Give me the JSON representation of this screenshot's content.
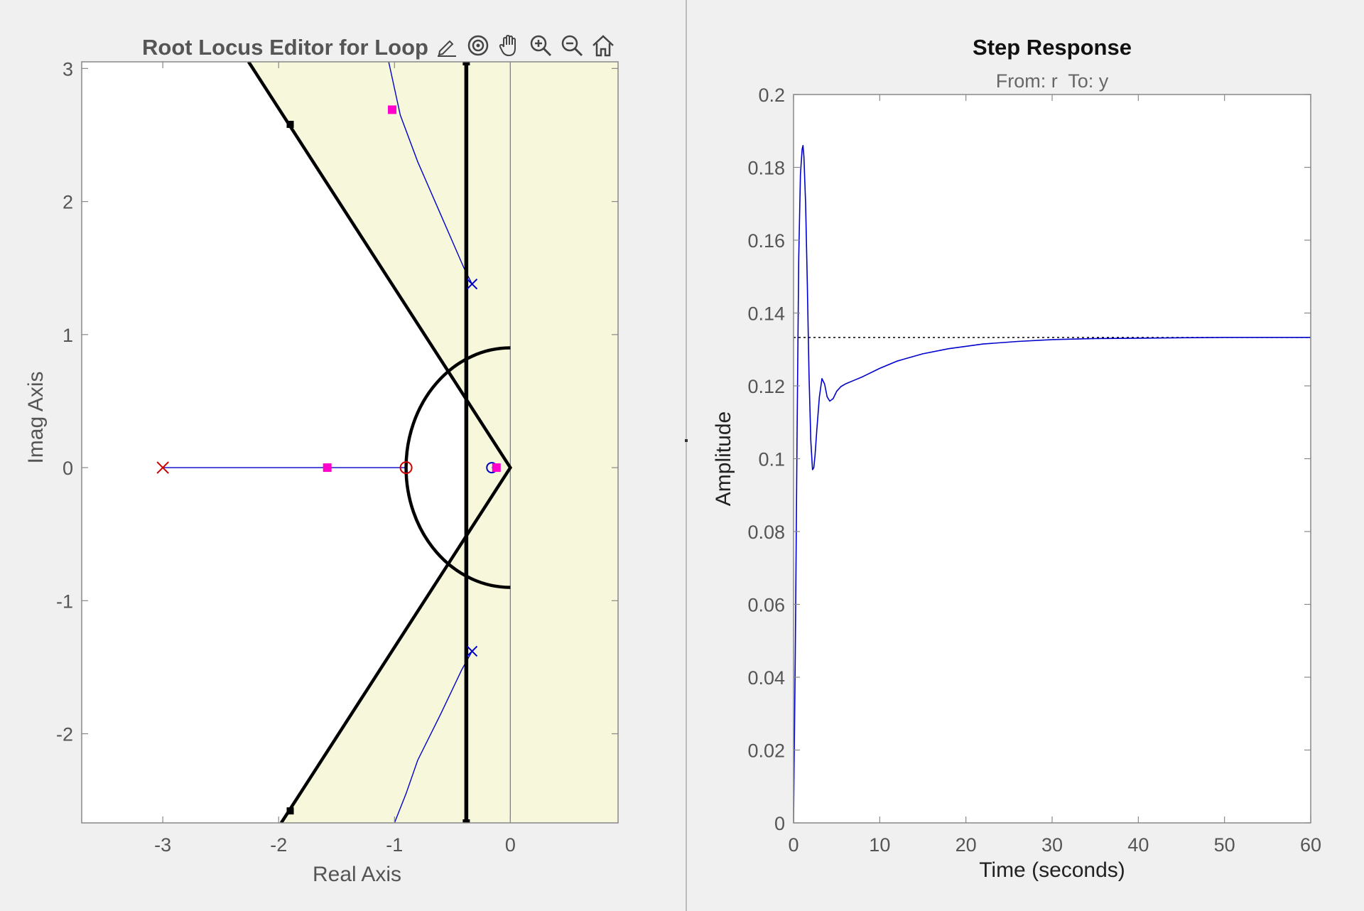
{
  "left_panel": {
    "title": "Root Locus Editor for Loop",
    "toolbar": [
      {
        "icon": "edit-pen-icon"
      },
      {
        "icon": "target-icon"
      },
      {
        "icon": "pan-hand-icon"
      },
      {
        "icon": "zoom-in-icon"
      },
      {
        "icon": "zoom-out-icon"
      },
      {
        "icon": "home-icon"
      }
    ]
  },
  "right_panel": {
    "title": "Step Response",
    "subtitle": "From: r  To: y"
  },
  "colors": {
    "region_fill": "#f7f7dc",
    "locus": "#0000cc",
    "pole_open": "#cc0000",
    "closed_loop_marker": "#ff00cc",
    "constraint_line": "#000000"
  },
  "chart_data": [
    {
      "type": "scatter",
      "title": "Root Locus Editor for Loop",
      "xlabel": "Real Axis",
      "ylabel": "Imag Axis",
      "xlim": [
        -3.7,
        0.93
      ],
      "ylim": [
        -2.67,
        3.05
      ],
      "xticks": [
        -3,
        -2,
        -1,
        0
      ],
      "yticks": [
        -2,
        -1,
        0,
        1,
        2,
        3
      ],
      "open_loop_poles_red": [
        [
          -3,
          0
        ]
      ],
      "open_loop_zeros_red": [
        [
          -0.9,
          0
        ]
      ],
      "compensator_poles_blue": [
        [
          -0.33,
          1.38
        ],
        [
          -0.33,
          -1.38
        ]
      ],
      "compensator_zeros_blue": [
        [
          -0.16,
          0
        ]
      ],
      "closed_loop_poles": [
        [
          -1.58,
          0
        ],
        [
          -1.02,
          2.69
        ],
        [
          -0.12,
          0
        ]
      ],
      "locus_branches": [
        {
          "name": "real-axis",
          "points": [
            [
              -3,
              0
            ],
            [
              -0.9,
              0
            ]
          ]
        },
        {
          "name": "upper",
          "points": [
            [
              -0.33,
              1.38
            ],
            [
              -0.4,
              1.5
            ],
            [
              -0.6,
              1.9
            ],
            [
              -0.8,
              2.3
            ],
            [
              -0.95,
              2.65
            ],
            [
              -1.05,
              3.05
            ]
          ]
        },
        {
          "name": "lower",
          "points": [
            [
              -0.33,
              -1.38
            ],
            [
              -0.42,
              -1.52
            ],
            [
              -0.6,
              -1.85
            ],
            [
              -0.8,
              -2.2
            ],
            [
              -0.9,
              -2.45
            ],
            [
              -1.0,
              -2.67
            ]
          ]
        },
        {
          "name": "real-axis-small",
          "points": [
            [
              -0.16,
              0
            ],
            [
              -0.12,
              0
            ]
          ]
        }
      ],
      "constraints": {
        "settling_boundary_x": -0.38,
        "damping_ray_slope": 1.35,
        "natural_frequency_radius": 0.9,
        "imag_axis_x": 0
      }
    },
    {
      "type": "line",
      "title": "Step Response",
      "subtitle": "From: r  To: y",
      "xlabel": "Time (seconds)",
      "ylabel": "Amplitude",
      "xlim": [
        0,
        60
      ],
      "ylim": [
        0,
        0.2
      ],
      "xticks": [
        0,
        10,
        20,
        30,
        40,
        50,
        60
      ],
      "yticks": [
        0,
        0.02,
        0.04,
        0.06,
        0.08,
        0.1,
        0.12,
        0.14,
        0.16,
        0.18,
        0.2
      ],
      "ytick_labels": [
        "0",
        "0.02",
        "0.04",
        "0.06",
        "0.08",
        "0.1",
        "0.12",
        "0.14",
        "0.16",
        "0.18",
        "0.2"
      ],
      "final_value": 0.1333,
      "series": [
        {
          "x": [
            0,
            0.2,
            0.4,
            0.6,
            0.8,
            1.0,
            1.1,
            1.2,
            1.4,
            1.6,
            1.8,
            2.0,
            2.2,
            2.35,
            2.5,
            2.7,
            3.0,
            3.3,
            3.6,
            3.9,
            4.2,
            4.6,
            5.0,
            5.5,
            6.0,
            7.0,
            8.0,
            10,
            12,
            15,
            18,
            22,
            26,
            30,
            35,
            40,
            45,
            50,
            55,
            60
          ],
          "y": [
            0,
            0.045,
            0.105,
            0.155,
            0.178,
            0.185,
            0.186,
            0.183,
            0.17,
            0.148,
            0.123,
            0.105,
            0.097,
            0.0975,
            0.101,
            0.108,
            0.117,
            0.122,
            0.1205,
            0.117,
            0.1158,
            0.1165,
            0.1185,
            0.1198,
            0.1205,
            0.1215,
            0.1225,
            0.1248,
            0.1268,
            0.1288,
            0.1302,
            0.1315,
            0.1322,
            0.1327,
            0.133,
            0.1331,
            0.1332,
            0.1333,
            0.1333,
            0.1333
          ]
        }
      ]
    }
  ]
}
